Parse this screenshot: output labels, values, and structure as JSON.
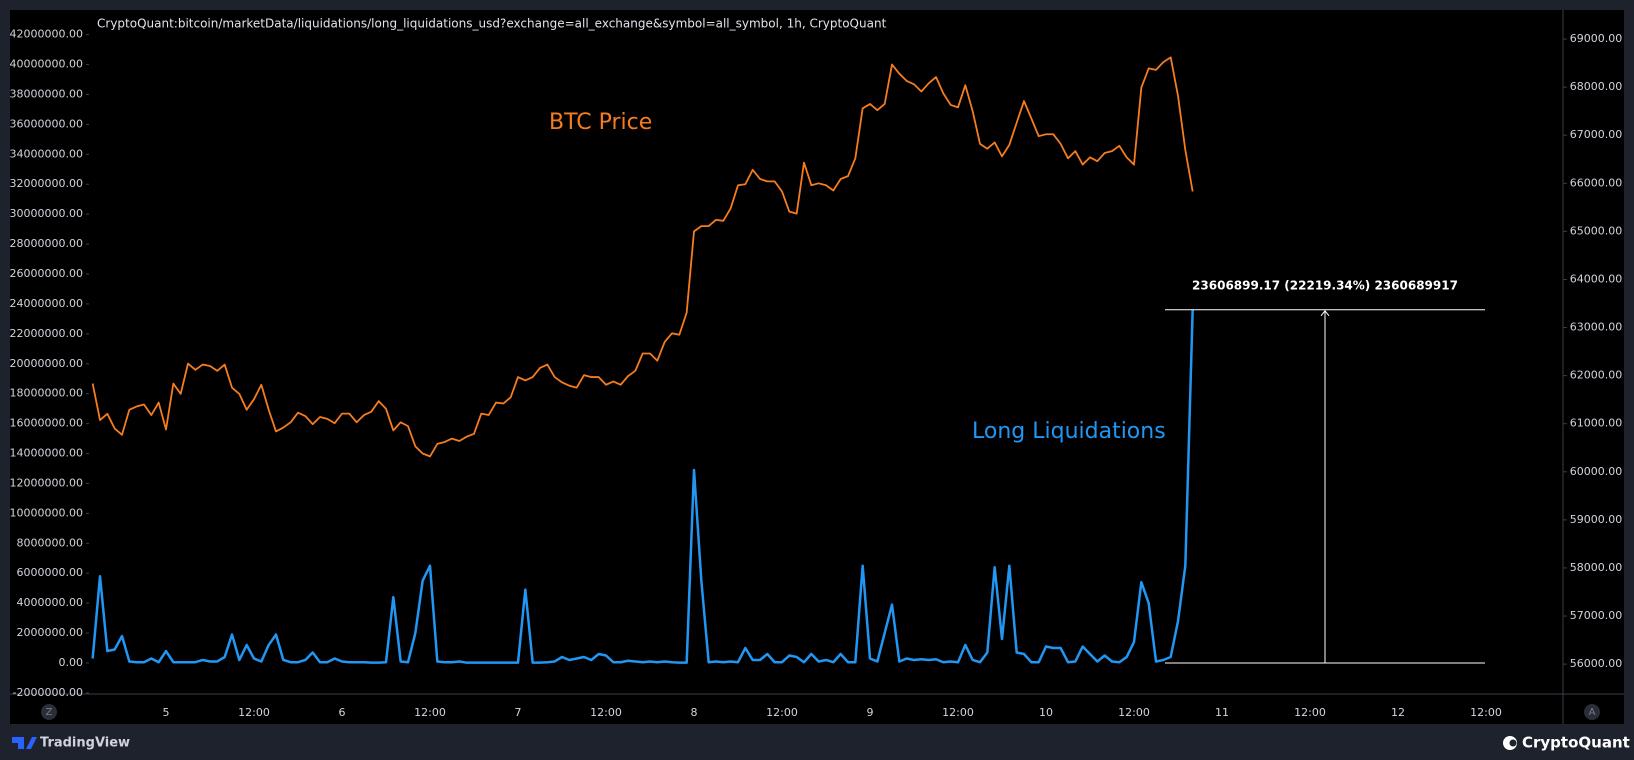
{
  "chart_data": {
    "type": "line",
    "title": "CryptoQuant:bitcoin/marketData/liquidations/long_liquidations_usd?exchange=all_exchange&symbol=all_symbol, 1h, CryptoQuant",
    "categories": [
      null,
      null,
      null,
      null,
      null,
      null,
      null,
      null,
      null,
      null,
      "5",
      null,
      null,
      null,
      null,
      null,
      null,
      null,
      null,
      null,
      null,
      null,
      "12:00",
      null,
      null,
      null,
      null,
      null,
      null,
      null,
      null,
      null,
      null,
      null,
      "6",
      null,
      null,
      null,
      null,
      null,
      null,
      null,
      null,
      null,
      null,
      null,
      "12:00",
      null,
      null,
      null,
      null,
      null,
      null,
      null,
      null,
      null,
      null,
      null,
      "7",
      null,
      null,
      null,
      null,
      null,
      null,
      null,
      null,
      null,
      null,
      null,
      "12:00",
      null,
      null,
      null,
      null,
      null,
      null,
      null,
      null,
      null,
      null,
      null,
      "8",
      null,
      null,
      null,
      null,
      null,
      null,
      null,
      null,
      null,
      null,
      null,
      "12:00",
      null,
      null,
      null,
      null,
      null,
      null,
      null,
      null,
      null,
      null,
      null,
      "9",
      null,
      null,
      null,
      null,
      null,
      null,
      null,
      null,
      null,
      null,
      null,
      "12:00",
      null,
      null,
      null,
      null,
      null,
      null,
      null,
      null,
      null,
      null,
      null,
      "10",
      null,
      null,
      null,
      null,
      null,
      null,
      null,
      null,
      null,
      null,
      null,
      "12:00",
      null,
      null,
      null,
      null,
      null,
      null,
      null,
      null,
      null,
      null,
      null,
      "11",
      null,
      null,
      null,
      null,
      null,
      null,
      null,
      null,
      null,
      null,
      null,
      "12:00",
      null,
      null,
      null,
      null,
      null,
      null,
      null,
      null,
      null,
      null,
      null,
      "12",
      null,
      null,
      null,
      null,
      null,
      null,
      null,
      null,
      null,
      null,
      null,
      "12:00",
      null,
      null,
      null,
      null,
      null,
      null,
      null,
      null,
      null,
      null
    ],
    "series": [
      {
        "name": "BTC Price",
        "color": "#f57c1f",
        "axis": "y2",
        "values": [
          61835,
          61076,
          61206,
          60900,
          60770,
          61290,
          61360,
          61400,
          61180,
          61440,
          60880,
          61835,
          61620,
          62250,
          62120,
          62230,
          62200,
          62100,
          62230,
          61750,
          61620,
          61290,
          61510,
          61810,
          61290,
          60840,
          60920,
          61030,
          61230,
          61160,
          60990,
          61140,
          61100,
          61010,
          61210,
          61210,
          61030,
          61180,
          61250,
          61470,
          61310,
          60860,
          61030,
          60950,
          60530,
          60380,
          60320,
          60580,
          60620,
          60690,
          60640,
          60730,
          60790,
          61210,
          61180,
          61440,
          61420,
          61550,
          61970,
          61900,
          61970,
          62160,
          62230,
          61970,
          61860,
          61790,
          61750,
          62010,
          61970,
          61970,
          61810,
          61880,
          61810,
          61990,
          62100,
          62460,
          62460,
          62310,
          62700,
          62880,
          62850,
          63310,
          65000,
          65110,
          65110,
          65240,
          65220,
          65480,
          65960,
          65980,
          66280,
          66090,
          66040,
          66040,
          65830,
          65410,
          65370,
          66430,
          65960,
          66000,
          65960,
          65850,
          66090,
          66150,
          66520,
          67560,
          67650,
          67520,
          67650,
          68470,
          68280,
          68130,
          68060,
          67910,
          68080,
          68210,
          67870,
          67630,
          67580,
          68040,
          67500,
          66820,
          66720,
          66850,
          66560,
          66800,
          67260,
          67710,
          67350,
          66980,
          67020,
          67020,
          66820,
          66520,
          66670,
          66390,
          66540,
          66460,
          66630,
          66670,
          66780,
          66540,
          66390,
          67990,
          68390,
          68360,
          68520,
          68620,
          67820,
          66690,
          65830,
          null,
          null,
          null,
          null,
          null,
          null,
          null,
          null,
          null,
          null,
          null,
          null,
          null,
          null,
          null,
          null,
          null,
          null,
          null,
          null,
          null,
          null,
          null,
          null,
          null,
          null,
          null,
          null,
          null,
          null,
          null,
          null,
          null,
          null,
          null,
          null,
          null,
          null,
          null,
          null,
          null,
          null,
          null,
          null,
          null,
          null,
          null,
          null,
          null,
          null
        ]
      },
      {
        "name": "Long Liquidations",
        "color": "#2196f3",
        "axis": "y",
        "values": [
          300000,
          5800000,
          800000,
          900000,
          1800000,
          100000,
          50000,
          50000,
          300000,
          50000,
          800000,
          50000,
          50000,
          50000,
          50000,
          200000,
          100000,
          100000,
          400000,
          1900000,
          200000,
          1200000,
          300000,
          100000,
          1200000,
          1900000,
          200000,
          50000,
          50000,
          200000,
          700000,
          50000,
          50000,
          300000,
          100000,
          50000,
          50000,
          50000,
          20000,
          20000,
          50000,
          4400000,
          100000,
          50000,
          2000000,
          5500000,
          6500000,
          100000,
          50000,
          50000,
          100000,
          20000,
          20000,
          20000,
          20000,
          20000,
          20000,
          20000,
          20000,
          4900000,
          20000,
          20000,
          50000,
          100000,
          400000,
          200000,
          300000,
          400000,
          200000,
          600000,
          500000,
          50000,
          50000,
          150000,
          100000,
          50000,
          100000,
          50000,
          100000,
          50000,
          20000,
          20000,
          12900000,
          5500000,
          50000,
          100000,
          50000,
          100000,
          50000,
          1000000,
          200000,
          200000,
          600000,
          50000,
          50000,
          500000,
          400000,
          50000,
          600000,
          100000,
          200000,
          50000,
          600000,
          50000,
          50000,
          6500000,
          300000,
          100000,
          2000000,
          3900000,
          100000,
          300000,
          200000,
          250000,
          200000,
          250000,
          50000,
          100000,
          50000,
          1200000,
          200000,
          50000,
          700000,
          6400000,
          1600000,
          6500000,
          700000,
          600000,
          50000,
          50000,
          1100000,
          1000000,
          1000000,
          50000,
          100000,
          1100000,
          600000,
          100000,
          500000,
          100000,
          50000,
          400000,
          1400000,
          5400000,
          4000000,
          100000,
          200000,
          400000,
          2800000,
          6500000,
          23606899.17,
          null,
          null,
          null,
          null,
          null,
          null,
          null,
          null,
          null,
          null,
          null,
          null,
          null,
          null,
          null,
          null,
          null,
          null,
          null,
          null,
          null,
          null,
          null,
          null,
          null,
          null,
          null,
          null,
          null,
          null,
          null,
          null,
          null,
          null,
          null,
          null,
          null,
          null,
          null,
          null,
          null,
          null,
          null,
          null,
          null,
          null,
          null,
          null,
          null,
          null
        ]
      }
    ],
    "ylim": [
      -2100000,
      43600000
    ],
    "yticks": [
      {
        "value": -2000000,
        "label": "-2000000.00"
      },
      {
        "value": 0,
        "label": "0.00"
      },
      {
        "value": 2000000,
        "label": "2000000.00"
      },
      {
        "value": 4000000,
        "label": "4000000.00"
      },
      {
        "value": 6000000,
        "label": "6000000.00"
      },
      {
        "value": 8000000,
        "label": "8000000.00"
      },
      {
        "value": 10000000,
        "label": "10000000.00"
      },
      {
        "value": 12000000,
        "label": "12000000.00"
      },
      {
        "value": 14000000,
        "label": "14000000.00"
      },
      {
        "value": 16000000,
        "label": "16000000.00"
      },
      {
        "value": 18000000,
        "label": "18000000.00"
      },
      {
        "value": 20000000,
        "label": "20000000.00"
      },
      {
        "value": 22000000,
        "label": "22000000.00"
      },
      {
        "value": 24000000,
        "label": "24000000.00"
      },
      {
        "value": 26000000,
        "label": "26000000.00"
      },
      {
        "value": 28000000,
        "label": "28000000.00"
      },
      {
        "value": 30000000,
        "label": "30000000.00"
      },
      {
        "value": 32000000,
        "label": "32000000.00"
      },
      {
        "value": 34000000,
        "label": "34000000.00"
      },
      {
        "value": 36000000,
        "label": "36000000.00"
      },
      {
        "value": 38000000,
        "label": "38000000.00"
      },
      {
        "value": 40000000,
        "label": "40000000.00"
      },
      {
        "value": 42000000,
        "label": "42000000.00"
      }
    ],
    "y2lim": [
      55370,
      69590
    ],
    "y2ticks": [
      {
        "value": 56000,
        "label": "56000.00"
      },
      {
        "value": 57000,
        "label": "57000.00"
      },
      {
        "value": 58000,
        "label": "58000.00"
      },
      {
        "value": 59000,
        "label": "59000.00"
      },
      {
        "value": 60000,
        "label": "60000.00"
      },
      {
        "value": 61000,
        "label": "61000.00"
      },
      {
        "value": 62000,
        "label": "62000.00"
      },
      {
        "value": 63000,
        "label": "63000.00"
      },
      {
        "value": 64000,
        "label": "64000.00"
      },
      {
        "value": 65000,
        "label": "65000.00"
      },
      {
        "value": 66000,
        "label": "66000.00"
      },
      {
        "value": 67000,
        "label": "67000.00"
      },
      {
        "value": 68000,
        "label": "68000.00"
      },
      {
        "value": 69000,
        "label": "69000.00"
      }
    ],
    "grid": false,
    "measure_label": "23606899.17 (22219.34%) 2360689917"
  },
  "scale_buttons": [
    "Z",
    "A"
  ],
  "footer": {
    "left": "TradingView",
    "right": "CryptoQuant"
  }
}
